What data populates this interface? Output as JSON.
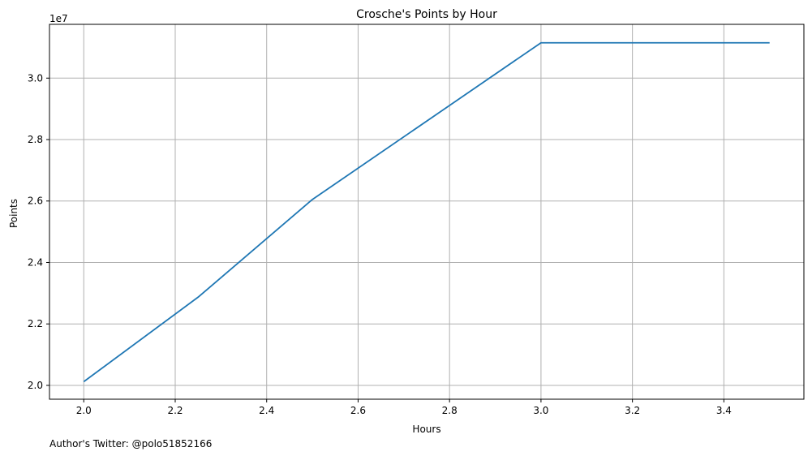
{
  "chart_data": {
    "type": "line",
    "title": "Crosche's Points by Hour",
    "xlabel": "Hours",
    "ylabel": "Points",
    "offset_text": "1e7",
    "footer_note": "Author's Twitter: @polo51852166",
    "xlim": [
      1.925,
      3.575
    ],
    "ylim": [
      19550000,
      31750000
    ],
    "x_ticks": [
      2.0,
      2.2,
      2.4,
      2.6,
      2.8,
      3.0,
      3.2,
      3.4
    ],
    "x_tick_labels": [
      "2.0",
      "2.2",
      "2.4",
      "2.6",
      "2.8",
      "3.0",
      "3.2",
      "3.4"
    ],
    "y_ticks": [
      20000000,
      22000000,
      24000000,
      26000000,
      28000000,
      30000000
    ],
    "y_tick_labels": [
      "2.0",
      "2.2",
      "2.4",
      "2.6",
      "2.8",
      "3.0"
    ],
    "grid": true,
    "line_color": "#1f77b4",
    "grid_color": "#b0b0b0",
    "series": [
      {
        "x": [
          2.0,
          2.25,
          2.5,
          3.0,
          3.5
        ],
        "values": [
          20120000,
          22870000,
          26050000,
          31150000,
          31150000
        ]
      }
    ]
  }
}
